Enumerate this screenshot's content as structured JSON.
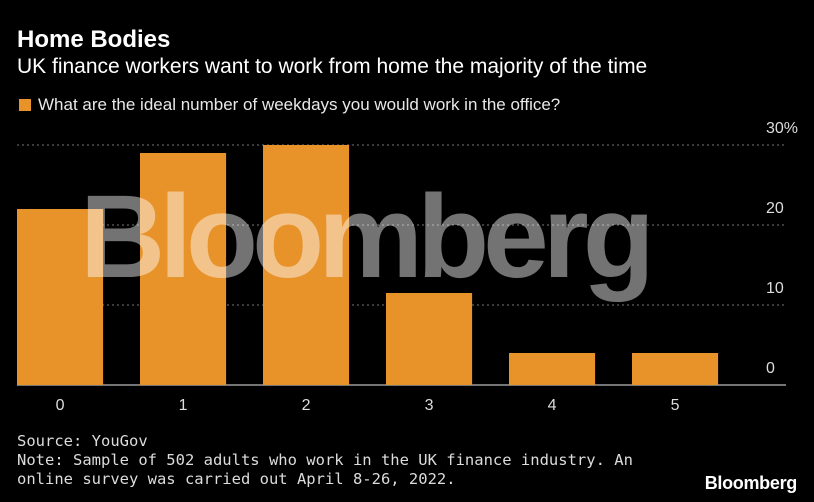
{
  "header": {
    "title": "Home Bodies",
    "subtitle": "UK finance workers want to work from home the majority of the time"
  },
  "footer": {
    "source": "Source: YouGov",
    "note": "Note: Sample of 502 adults who work in the UK finance industry. An online survey was carried out April 8-26, 2022.",
    "logo": "Bloomberg"
  },
  "watermark": "Bloomberg",
  "colors": {
    "bar": "#e8922a",
    "background": "#000000",
    "grid": "#777777"
  },
  "chart_data": {
    "type": "bar",
    "title": "Home Bodies",
    "subtitle": "UK finance workers want to work from home the majority of the time",
    "categories": [
      "0",
      "1",
      "2",
      "3",
      "4",
      "5"
    ],
    "series": [
      {
        "name": "What are the ideal number of weekdays you would work in the office?",
        "values": [
          22,
          29,
          30,
          11.5,
          4,
          4
        ]
      }
    ],
    "ylim": [
      0,
      30
    ],
    "yticks": [
      0,
      10,
      20,
      30
    ],
    "ytick_labels": [
      "0",
      "10",
      "20",
      "30%"
    ],
    "grid": true,
    "legend": "top-left",
    "y_axis_side": "right"
  }
}
